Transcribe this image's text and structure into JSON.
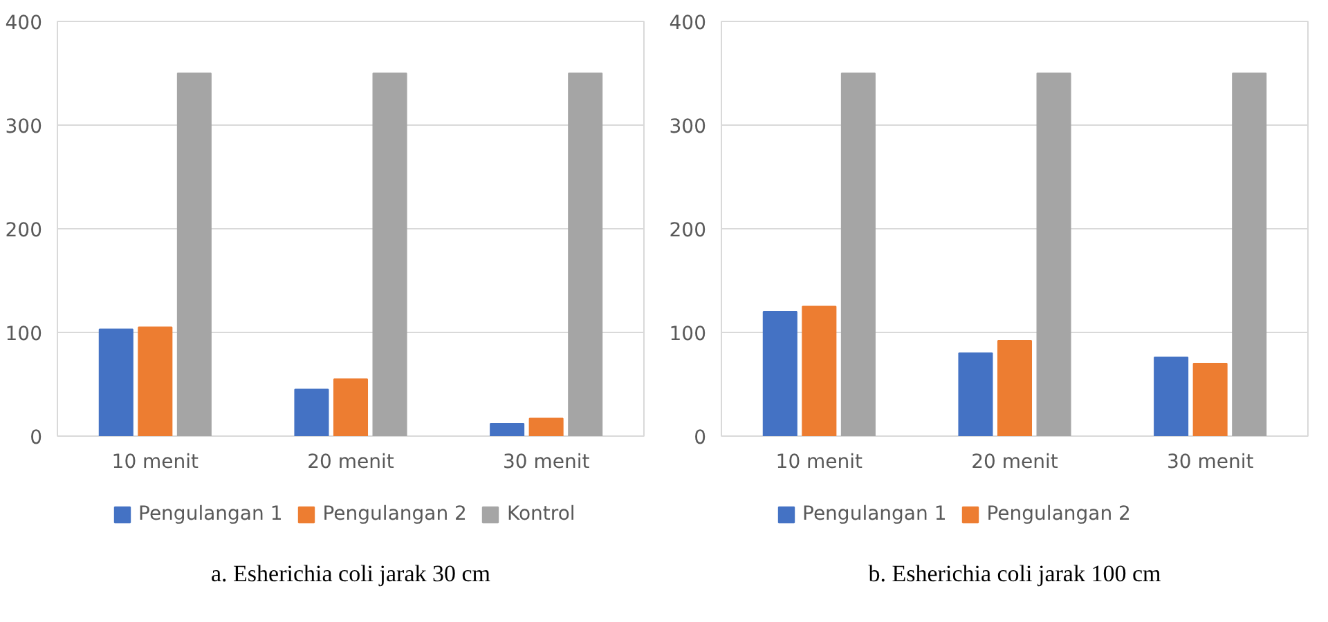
{
  "chart_data": [
    {
      "type": "bar",
      "title": "a. Esherichia coli jarak 30 cm",
      "categories": [
        "10 menit",
        "20 menit",
        "30 menit"
      ],
      "ylim": [
        0,
        400
      ],
      "yticks": [
        0,
        100,
        200,
        300,
        400
      ],
      "grid": "y",
      "legend": "bottom",
      "series": [
        {
          "name": "Pengulangan 1",
          "color": "#4472c4",
          "values": [
            103,
            45,
            12
          ]
        },
        {
          "name": "Pengulangan 2",
          "color": "#ed7d31",
          "values": [
            105,
            55,
            17
          ]
        },
        {
          "name": "Kontrol",
          "color": "#a5a5a5",
          "values": [
            350,
            350,
            350
          ]
        }
      ]
    },
    {
      "type": "bar",
      "title": "b. Esherichia coli jarak 100 cm",
      "categories": [
        "10 menit",
        "20 menit",
        "30 menit"
      ],
      "ylim": [
        0,
        400
      ],
      "yticks": [
        0,
        100,
        200,
        300,
        400
      ],
      "grid": "y",
      "legend": "bottom",
      "series": [
        {
          "name": "Pengulangan 1",
          "color": "#4472c4",
          "values": [
            120,
            80,
            76
          ]
        },
        {
          "name": "Pengulangan 2",
          "color": "#ed7d31",
          "values": [
            125,
            92,
            70
          ]
        },
        {
          "color": "#a5a5a5",
          "values": [
            350,
            350,
            350
          ]
        }
      ]
    }
  ]
}
